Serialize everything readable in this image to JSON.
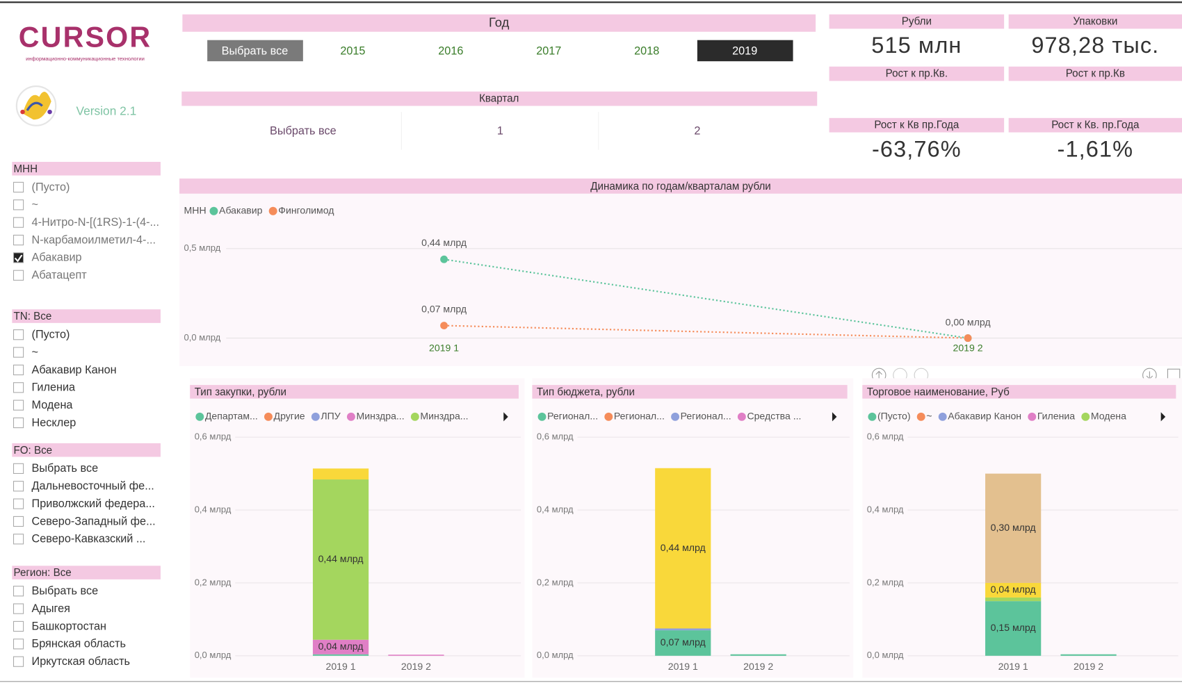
{
  "logo": {
    "brand": "CURSOR",
    "tagline": "информационно-коммуникационные технологии",
    "version": "Version 2.1"
  },
  "slicers": [
    {
      "title": "МНН",
      "items": [
        {
          "label": "(Пусто)",
          "checked": false
        },
        {
          "label": "~",
          "checked": false
        },
        {
          "label": "4-Нитро-N-[(1RS)-1-(4-...",
          "checked": false
        },
        {
          "label": "N-карбамоилметил-4-...",
          "checked": false
        },
        {
          "label": "Абакавир",
          "checked": true
        },
        {
          "label": "Абатацепт",
          "checked": false
        }
      ]
    },
    {
      "title": "TN: Все",
      "items": [
        {
          "label": "(Пусто)",
          "checked": false
        },
        {
          "label": "~",
          "checked": false
        },
        {
          "label": "Абакавир Канон",
          "checked": false
        },
        {
          "label": "Гилениа",
          "checked": false
        },
        {
          "label": "Модена",
          "checked": false
        },
        {
          "label": "Несклер",
          "checked": false
        }
      ]
    },
    {
      "title": "FO: Все",
      "items": [
        {
          "label": "Выбрать все",
          "checked": false
        },
        {
          "label": "Дальневосточный фе...",
          "checked": false
        },
        {
          "label": "Приволжский федера...",
          "checked": false
        },
        {
          "label": "Северо-Западный фе...",
          "checked": false
        },
        {
          "label": "Северо-Кавказский ...",
          "checked": false
        }
      ]
    },
    {
      "title": "Регион: Все",
      "items": [
        {
          "label": "Выбрать все",
          "checked": false
        },
        {
          "label": "Адыгея",
          "checked": false
        },
        {
          "label": "Башкортостан",
          "checked": false
        },
        {
          "label": "Брянская область",
          "checked": false
        },
        {
          "label": "Иркутская область",
          "checked": false
        }
      ]
    }
  ],
  "year_filter": {
    "title": "Год",
    "options": [
      "Выбрать все",
      "2015",
      "2016",
      "2017",
      "2018",
      "2019"
    ],
    "highlighted": 0,
    "selected": 5
  },
  "quarter_filter": {
    "title": "Квартал",
    "options": [
      "Выбрать все",
      "1",
      "2"
    ]
  },
  "kpis": [
    {
      "label": "Рубли",
      "value": "515 млн"
    },
    {
      "label": "Упаковки",
      "value": "978,28 тыс."
    },
    {
      "label": "Рост к пр.Кв."
    },
    {
      "label": "Рост к пр.Кв"
    },
    {
      "label": "Рост к Кв пр.Года",
      "value": "-63,76%"
    },
    {
      "label": "Рост к Кв. пр.Года",
      "value": "-1,61%"
    }
  ],
  "line_chart": {
    "type": "line",
    "title": "Динамика по годам/кварталам  рубли",
    "legend_title": "МНН",
    "categories": [
      "2019 1",
      "2019 2"
    ],
    "series": [
      {
        "name": "Абакавир",
        "color": "#5cc49b",
        "values": [
          0.44,
          0
        ],
        "value_labels": [
          "0,44 млрд",
          null
        ]
      },
      {
        "name": "Финголимод",
        "color": "#f58c5a",
        "values": [
          0.07,
          0
        ],
        "value_labels": [
          "0,07 млрд",
          "0,00 млрд"
        ]
      }
    ],
    "ylim": [
      0,
      0.6
    ],
    "yticks": [
      {
        "value": 0,
        "label": "0,0 млрд"
      },
      {
        "value": 0.5,
        "label": "0,5 млрд"
      }
    ]
  },
  "bar_charts": [
    {
      "type": "stacked_bar",
      "title": "Тип закупки, рубли",
      "categories": [
        "2019 1",
        "2019 2"
      ],
      "series": [
        {
          "name": "Департам...",
          "color": "#5cc49b",
          "values": [
            0.004,
            0
          ]
        },
        {
          "name": "Другие",
          "color": "#f58c5a",
          "values": [
            0,
            0
          ]
        },
        {
          "name": "ЛПУ",
          "color": "#8fa0dc",
          "values": [
            0,
            0
          ]
        },
        {
          "name": "Минздра...",
          "color": "#e07fc6",
          "values": [
            0.04,
            0.003
          ],
          "value_labels": [
            "0,04 млрд",
            null
          ]
        },
        {
          "name": "Минздра...",
          "color": "#a4d65e",
          "values": [
            0.44,
            0
          ],
          "value_labels": [
            "0,44 млрд",
            null
          ]
        },
        {
          "color": "#f9d83a",
          "values": [
            0.03,
            0
          ]
        }
      ],
      "ylim": [
        0,
        0.6
      ],
      "yticks": [
        {
          "value": 0,
          "label": "0,0 млрд"
        },
        {
          "value": 0.2,
          "label": "0,2 млрд"
        },
        {
          "value": 0.4,
          "label": "0,4 млрд"
        },
        {
          "value": 0.6,
          "label": "0,6 млрд"
        }
      ]
    },
    {
      "type": "stacked_bar",
      "title": "Тип бюджета, рубли",
      "categories": [
        "2019 1",
        "2019 2"
      ],
      "series": [
        {
          "name": "Регионал...",
          "color": "#5cc49b",
          "values": [
            0.07,
            0.004
          ],
          "value_labels": [
            "0,07 млрд",
            null
          ]
        },
        {
          "name": "Регионал...",
          "color": "#f58c5a",
          "values": [
            0,
            0
          ]
        },
        {
          "name": "Регионал...",
          "color": "#8fa0dc",
          "values": [
            0.005,
            0
          ]
        },
        {
          "name": "Средства ...",
          "color": "#e07fc6",
          "values": [
            0,
            0
          ]
        },
        {
          "color": "#f9d83a",
          "values": [
            0.44,
            0
          ],
          "value_labels": [
            "0,44 млрд",
            null
          ]
        }
      ],
      "ylim": [
        0,
        0.6
      ],
      "yticks": [
        {
          "value": 0,
          "label": "0,0 млрд"
        },
        {
          "value": 0.2,
          "label": "0,2 млрд"
        },
        {
          "value": 0.4,
          "label": "0,4 млрд"
        },
        {
          "value": 0.6,
          "label": "0,6 млрд"
        }
      ]
    },
    {
      "type": "stacked_bar",
      "title": "Торговое наименование, Руб",
      "categories": [
        "2019 1",
        "2019 2"
      ],
      "series": [
        {
          "name": "(Пусто)",
          "color": "#5cc49b",
          "values": [
            0.15,
            0.004
          ],
          "value_labels": [
            "0,15 млрд",
            null
          ]
        },
        {
          "name": "~",
          "color": "#f58c5a",
          "values": [
            0,
            0
          ]
        },
        {
          "name": "Абакавир Канон",
          "color": "#8fa0dc",
          "values": [
            0,
            0
          ]
        },
        {
          "name": "Гилениа",
          "color": "#e07fc6",
          "values": [
            0,
            0
          ]
        },
        {
          "name": "Модена",
          "color": "#a4d65e",
          "values": [
            0.01,
            0
          ]
        },
        {
          "color": "#f9d83a",
          "values": [
            0.04,
            0
          ],
          "value_labels": [
            "0,04 млрд",
            null
          ]
        },
        {
          "color": "#e3c08f",
          "values": [
            0.3,
            0
          ],
          "value_labels": [
            "0,30 млрд",
            null
          ]
        }
      ],
      "ylim": [
        0,
        0.6
      ],
      "yticks": [
        {
          "value": 0,
          "label": "0,0 млрд"
        },
        {
          "value": 0.2,
          "label": "0,2 млрд"
        },
        {
          "value": 0.4,
          "label": "0,4 млрд"
        },
        {
          "value": 0.6,
          "label": "0,6 млрд"
        }
      ]
    }
  ]
}
